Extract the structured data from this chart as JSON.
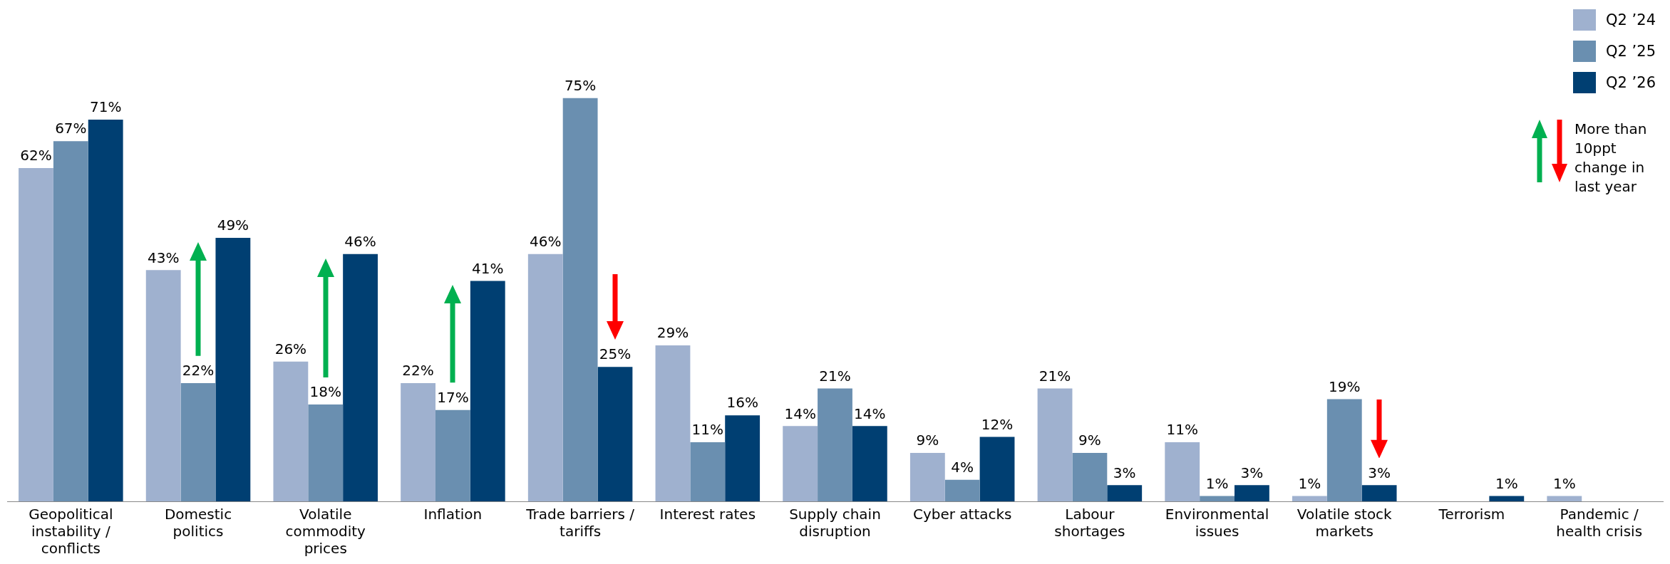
{
  "chart_data": {
    "type": "bar",
    "categories": [
      "Geopolitical instability / conflicts",
      "Domestic politics",
      "Volatile commodity prices",
      "Inflation",
      "Trade barriers / tariffs",
      "Interest rates",
      "Supply chain disruption",
      "Cyber attacks",
      "Labour shortages",
      "Environmental issues",
      "Volatile stock markets",
      "Terrorism",
      "Pandemic / health crisis"
    ],
    "series": [
      {
        "name": "Q2 ’24",
        "color": "#9fb1cf",
        "values": [
          62,
          43,
          26,
          22,
          46,
          29,
          14,
          9,
          21,
          11,
          1,
          null,
          1
        ],
        "value_labels": [
          "62%",
          "43%",
          "26%",
          "22%",
          "46%",
          "29%",
          "14%",
          "9%",
          "21%",
          "11%",
          "1%",
          null,
          "1%"
        ]
      },
      {
        "name": "Q2 ’25",
        "color": "#6a8fb0",
        "values": [
          67,
          22,
          18,
          17,
          75,
          11,
          21,
          4,
          9,
          1,
          19,
          null,
          null
        ],
        "value_labels": [
          "67%",
          "22%",
          "18%",
          "17%",
          "75%",
          "11%",
          "21%",
          "4%",
          "9%",
          "1%",
          "19%",
          null,
          null
        ]
      },
      {
        "name": "Q2 ’26",
        "color": "#003f72",
        "values": [
          71,
          49,
          46,
          41,
          25,
          16,
          14,
          12,
          3,
          3,
          3,
          1,
          null
        ],
        "value_labels": [
          "71%",
          "49%",
          "46%",
          "41%",
          "25%",
          "16%",
          "14%",
          "12%",
          "3%",
          "3%",
          "3%",
          "1%",
          null
        ]
      }
    ],
    "legend": "top right",
    "grid": false,
    "annotations": [
      "More than 10ppt change in last year"
    ]
  }
}
